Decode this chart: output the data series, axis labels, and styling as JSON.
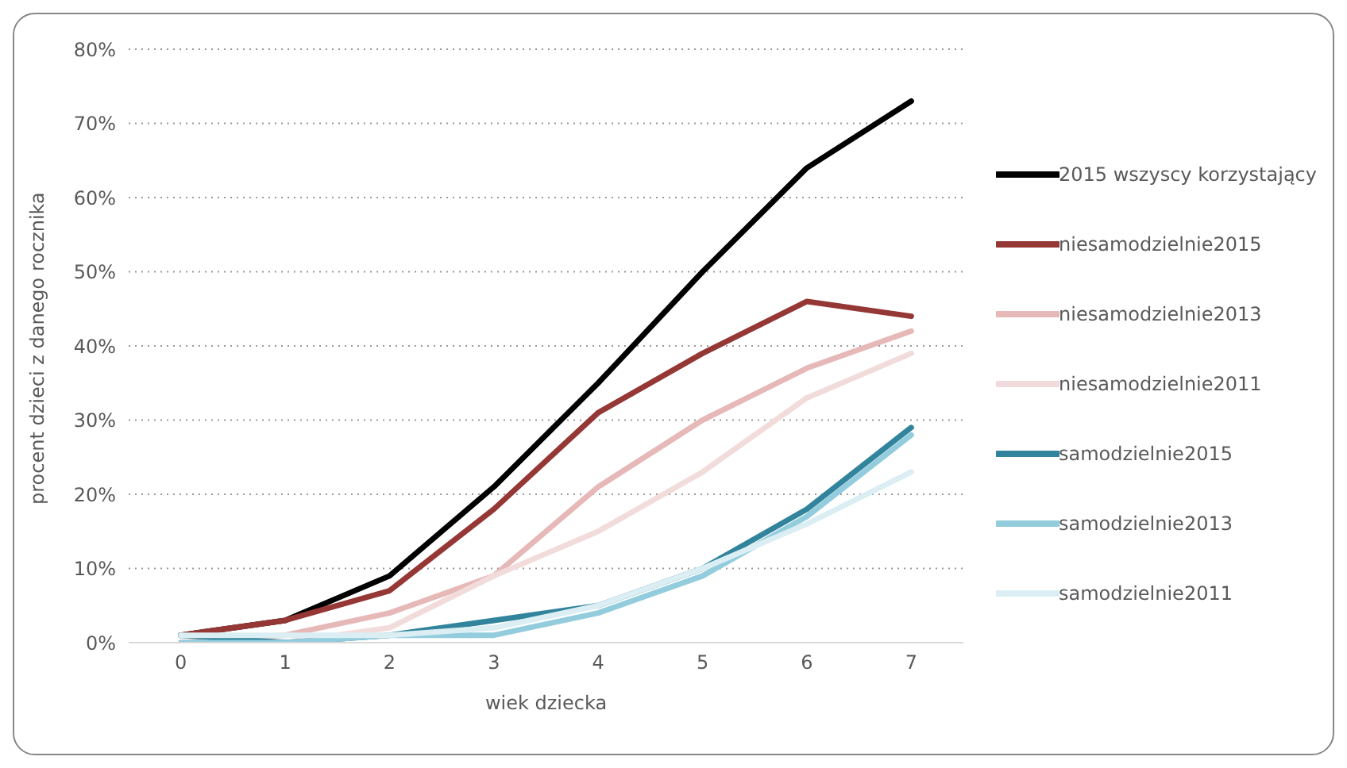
{
  "chart_data": {
    "type": "line",
    "xlabel": "wiek dziecka",
    "ylabel": "procent dzieci z danego rocznika",
    "x": [
      0,
      1,
      2,
      3,
      4,
      5,
      6,
      7
    ],
    "xlim": [
      -0.5,
      7.5
    ],
    "xticks": [
      0,
      1,
      2,
      3,
      4,
      5,
      6,
      7
    ],
    "ylim": [
      0,
      80
    ],
    "yticks": [
      {
        "value": 0,
        "label": "0%"
      },
      {
        "value": 10,
        "label": "10%"
      },
      {
        "value": 20,
        "label": "20%"
      },
      {
        "value": 30,
        "label": "30%"
      },
      {
        "value": 40,
        "label": "40%"
      },
      {
        "value": 50,
        "label": "50%"
      },
      {
        "value": 60,
        "label": "60%"
      },
      {
        "value": 70,
        "label": "70%"
      },
      {
        "value": 80,
        "label": "80%"
      }
    ],
    "grid": "y",
    "legend": "right",
    "marker": "none",
    "line_style": "solid",
    "series": [
      {
        "name": "2015 wszyscy korzystający",
        "color": "#000000",
        "values": [
          1,
          3,
          9,
          21,
          35,
          50,
          64,
          73
        ]
      },
      {
        "name": "niesamodzielnie2015",
        "color": "#953735",
        "values": [
          1,
          3,
          7,
          18,
          31,
          39,
          46,
          44
        ]
      },
      {
        "name": "niesamodzielnie2013",
        "color": "#e6b9b8",
        "values": [
          0,
          1,
          4,
          9,
          21,
          30,
          37,
          42
        ]
      },
      {
        "name": "niesamodzielnie2011",
        "color": "#f2dcdb",
        "values": [
          0,
          0,
          2,
          9,
          15,
          23,
          33,
          39
        ]
      },
      {
        "name": "samodzielnie2015",
        "color": "#31849b",
        "values": [
          1,
          0,
          1,
          3,
          5,
          10,
          18,
          29
        ]
      },
      {
        "name": "samodzielnie2013",
        "color": "#93cddd",
        "values": [
          0,
          0,
          1,
          1,
          4,
          9,
          17,
          28
        ]
      },
      {
        "name": "samodzielnie2011",
        "color": "#dbeef4",
        "values": [
          1,
          1,
          1,
          2,
          5,
          10,
          16,
          23
        ]
      }
    ]
  }
}
